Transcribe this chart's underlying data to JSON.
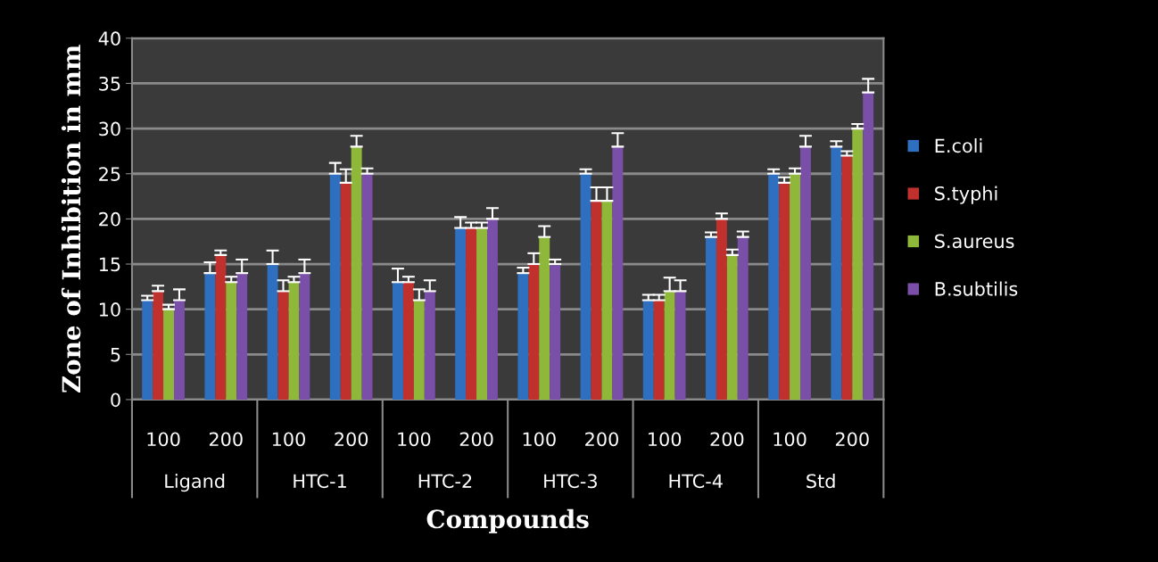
{
  "chart_data": {
    "type": "bar",
    "xlabel": "Compounds",
    "ylabel": "Zone of Inhibition in mm",
    "categories": [
      "100",
      "200",
      "100",
      "200",
      "100",
      "200",
      "100",
      "200",
      "100",
      "200",
      "100",
      "200"
    ],
    "annotations": [
      "Ligand",
      "HTC-1",
      "HTC-2",
      "HTC-3",
      "HTC-4",
      "Std"
    ],
    "series": [
      {
        "name": "E.coli",
        "color": "#2f6fc0",
        "values": [
          11,
          14,
          15,
          25,
          13,
          19,
          14,
          25,
          11,
          18,
          25,
          28
        ],
        "errors": [
          [
            11,
            11.5
          ],
          [
            14,
            15.2
          ],
          [
            15,
            16.5
          ],
          [
            25,
            26.2
          ],
          [
            13,
            14.5
          ],
          [
            19,
            20.2
          ],
          [
            14,
            14.6
          ],
          [
            25,
            25.5
          ],
          [
            11,
            11.6
          ],
          [
            18,
            18.5
          ],
          [
            25,
            25.5
          ],
          [
            28,
            28.6
          ]
        ]
      },
      {
        "name": "S.typhi",
        "color": "#c0312e",
        "values": [
          12,
          16,
          12,
          24,
          13,
          19,
          15,
          22,
          11,
          20,
          24,
          27
        ],
        "errors": [
          [
            12,
            12.6
          ],
          [
            16,
            16.5
          ],
          [
            12,
            13.2
          ],
          [
            24,
            25.5
          ],
          [
            13,
            13.6
          ],
          [
            19,
            19.6
          ],
          [
            15,
            16.2
          ],
          [
            22,
            23.5
          ],
          [
            11,
            11.6
          ],
          [
            20,
            20.6
          ],
          [
            24,
            24.6
          ],
          [
            27,
            27.5
          ]
        ]
      },
      {
        "name": "S.aureus",
        "color": "#8fb83a",
        "values": [
          10,
          13,
          13,
          28,
          11,
          19,
          18,
          22,
          12,
          16,
          25,
          30
        ],
        "errors": [
          [
            10,
            10.5
          ],
          [
            13,
            13.6
          ],
          [
            13,
            13.6
          ],
          [
            28,
            29.2
          ],
          [
            11,
            12.2
          ],
          [
            19,
            19.6
          ],
          [
            18,
            19.2
          ],
          [
            22,
            23.5
          ],
          [
            12,
            13.5
          ],
          [
            16,
            16.6
          ],
          [
            25,
            25.6
          ],
          [
            30,
            30.5
          ]
        ]
      },
      {
        "name": "B.subtilis",
        "color": "#7a4fa8",
        "values": [
          11,
          14,
          14,
          25,
          12,
          20,
          15,
          28,
          12,
          18,
          28,
          34
        ],
        "errors": [
          [
            11,
            12.2
          ],
          [
            14,
            15.5
          ],
          [
            14,
            15.5
          ],
          [
            25,
            25.6
          ],
          [
            12,
            13.2
          ],
          [
            20,
            21.2
          ],
          [
            15,
            15.5
          ],
          [
            28,
            29.5
          ],
          [
            12,
            13.2
          ],
          [
            18,
            18.6
          ],
          [
            28,
            29.2
          ],
          [
            34,
            35.5
          ]
        ]
      }
    ],
    "ylim": [
      0,
      40
    ],
    "yticks": [
      0,
      5,
      10,
      15,
      20,
      25,
      30,
      35,
      40
    ],
    "grid": "y",
    "legend": "right"
  }
}
